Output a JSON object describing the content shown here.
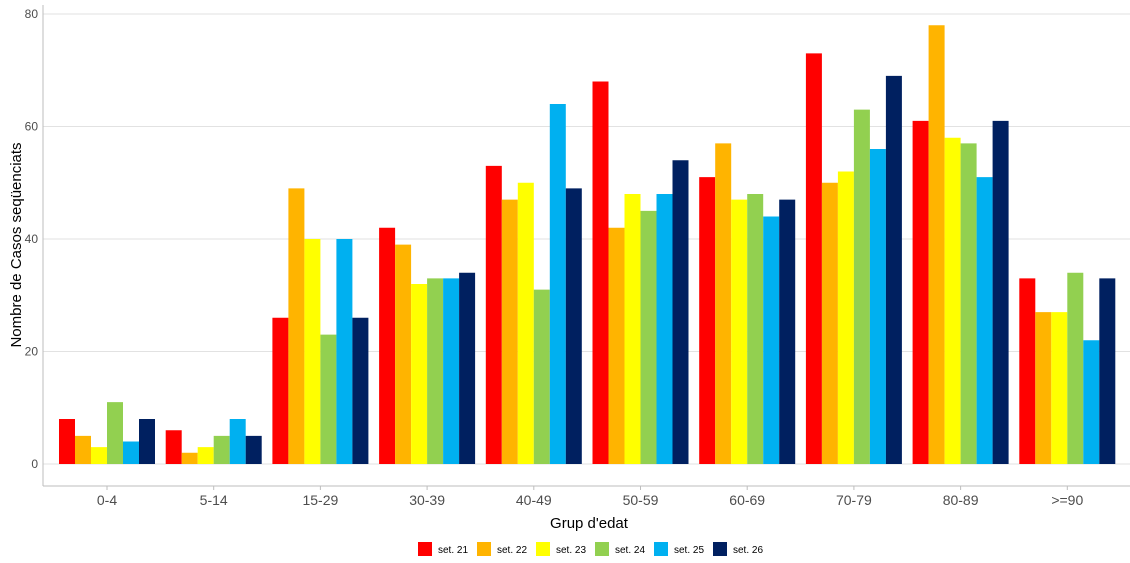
{
  "chart_data": {
    "type": "bar",
    "title": "",
    "xlabel": "Grup d'edat",
    "ylabel": "Nombre de Casos seqüenciats",
    "ylim": [
      0,
      80
    ],
    "yticks": [
      0,
      20,
      40,
      60,
      80
    ],
    "grid": "horizontal",
    "legend_position": "bottom",
    "categories": [
      "0-4",
      "5-14",
      "15-29",
      "30-39",
      "40-49",
      "50-59",
      "60-69",
      "70-79",
      "80-89",
      ">=90"
    ],
    "series": [
      {
        "name": "set. 21",
        "color": "#ff0000",
        "values": [
          8,
          6,
          26,
          42,
          53,
          68,
          51,
          73,
          61,
          33
        ]
      },
      {
        "name": "set. 22",
        "color": "#ffb400",
        "values": [
          5,
          2,
          49,
          39,
          47,
          42,
          57,
          50,
          78,
          27
        ]
      },
      {
        "name": "set. 23",
        "color": "#ffff00",
        "values": [
          3,
          3,
          40,
          32,
          50,
          48,
          47,
          52,
          58,
          27
        ]
      },
      {
        "name": "set. 24",
        "color": "#92d050",
        "values": [
          11,
          5,
          23,
          33,
          31,
          45,
          48,
          63,
          57,
          34
        ]
      },
      {
        "name": "set. 25",
        "color": "#00b0f0",
        "values": [
          4,
          8,
          40,
          33,
          64,
          48,
          44,
          56,
          51,
          22
        ]
      },
      {
        "name": "set. 26",
        "color": "#002060",
        "values": [
          8,
          5,
          26,
          34,
          49,
          54,
          47,
          69,
          61,
          33
        ]
      }
    ]
  }
}
